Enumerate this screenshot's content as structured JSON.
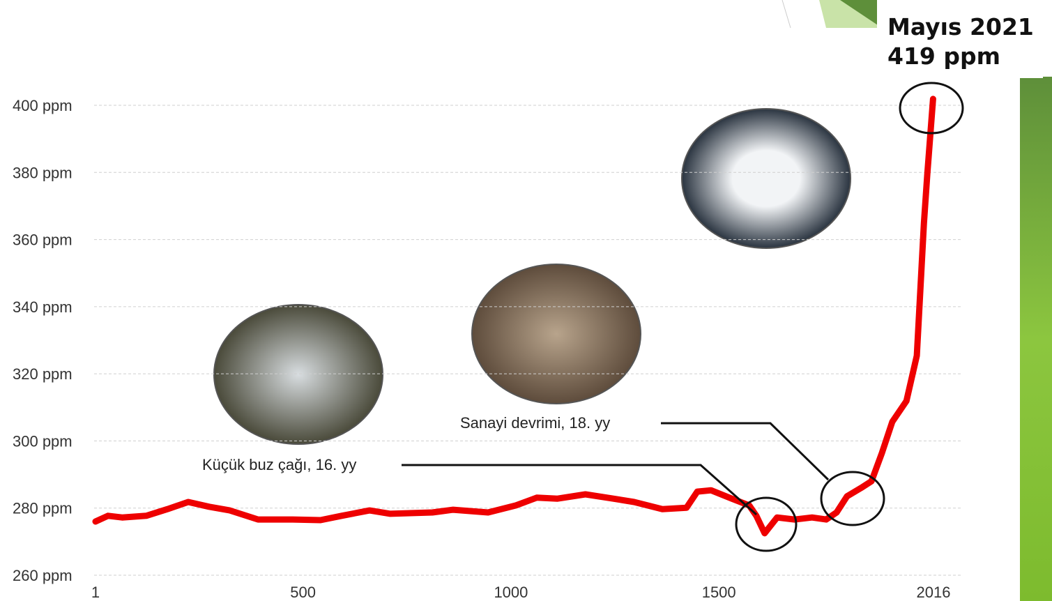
{
  "chart_data": {
    "type": "line",
    "x": [
      1,
      31,
      65,
      123,
      174,
      224,
      274,
      324,
      392,
      475,
      542,
      593,
      660,
      710,
      811,
      861,
      945,
      1012,
      1062,
      1112,
      1179,
      1246,
      1296,
      1364,
      1422,
      1448,
      1481,
      1531,
      1573,
      1590,
      1610,
      1640,
      1682,
      1724,
      1758,
      1783,
      1808,
      1842,
      1867,
      1892,
      1917,
      1951,
      1976,
      1993,
      2001,
      2015
    ],
    "values": [
      276,
      277.7,
      277.2,
      277.7,
      279.7,
      281.8,
      280.4,
      279.3,
      276.6,
      276.6,
      276.4,
      277.7,
      279.3,
      278.3,
      278.7,
      279.5,
      278.7,
      280.8,
      283.1,
      282.8,
      284.1,
      282.8,
      281.8,
      279.7,
      280.1,
      284.9,
      285.3,
      282.8,
      280.8,
      277.7,
      272.5,
      277.2,
      276.6,
      277.2,
      276.6,
      278.7,
      283.5,
      286,
      288,
      296.4,
      305.7,
      311.9,
      325.4,
      364.9,
      379.4,
      401.9
    ],
    "color": "#ee0000",
    "xlim": [
      1,
      2016
    ],
    "xticks": [
      1,
      500,
      1000,
      1500,
      2016
    ],
    "ylim": [
      260,
      400
    ],
    "yticks": [
      {
        "value": 260,
        "label": "260 ppm"
      },
      {
        "value": 280,
        "label": "280 ppm"
      },
      {
        "value": 300,
        "label": "300 ppm"
      },
      {
        "value": 320,
        "label": "320 ppm"
      },
      {
        "value": 340,
        "label": "340 ppm"
      },
      {
        "value": 360,
        "label": "360 ppm"
      },
      {
        "value": 380,
        "label": "380 ppm"
      },
      {
        "value": 400,
        "label": "400 ppm"
      }
    ],
    "grid": true,
    "annotations": [
      "Küçük buz çağı, 16. yy",
      "Sanayi devrimi, 18. yy"
    ],
    "callout": [
      "Mayıs 2021",
      "419 ppm"
    ]
  }
}
